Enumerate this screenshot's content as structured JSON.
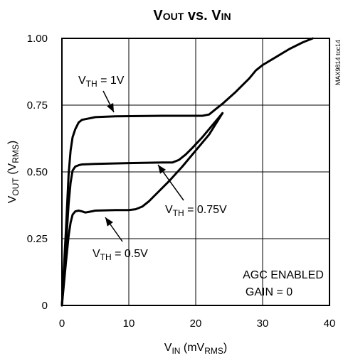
{
  "chart_data": {
    "type": "line",
    "title": "VOUT vs. VIN",
    "xlabel": "VIN (mVRMS)",
    "ylabel": "VOUT (VRMS)",
    "xlim": [
      0,
      40
    ],
    "ylim": [
      0,
      1.0
    ],
    "x_ticks": [
      "0",
      "10",
      "20",
      "30",
      "40"
    ],
    "y_ticks": [
      "0",
      "0.25",
      "0.50",
      "0.75",
      "1.00"
    ],
    "grid": true,
    "legend": "none",
    "side_label": "MAX9814 toc14",
    "annotation_lines": [
      "AGC ENABLED",
      "GAIN = 0"
    ],
    "series": [
      {
        "name": "VTH = 1V",
        "points": [
          [
            0,
            0
          ],
          [
            0.6,
            0.28
          ],
          [
            1.0,
            0.49
          ],
          [
            1.3,
            0.58
          ],
          [
            1.6,
            0.63
          ],
          [
            2.0,
            0.66
          ],
          [
            2.5,
            0.685
          ],
          [
            3.0,
            0.695
          ],
          [
            4.0,
            0.7
          ],
          [
            5.0,
            0.705
          ],
          [
            8.0,
            0.708
          ],
          [
            15.0,
            0.71
          ],
          [
            20.0,
            0.71
          ],
          [
            21.0,
            0.71
          ],
          [
            22.0,
            0.715
          ],
          [
            23.0,
            0.735
          ],
          [
            24.0,
            0.755
          ],
          [
            26.0,
            0.8
          ],
          [
            28.0,
            0.85
          ],
          [
            29.0,
            0.88
          ],
          [
            30.0,
            0.9
          ],
          [
            32.0,
            0.93
          ],
          [
            34.0,
            0.96
          ],
          [
            36.0,
            0.985
          ],
          [
            37.5,
            1.0
          ]
        ]
      },
      {
        "name": "VTH = 0.75V",
        "points": [
          [
            0,
            0
          ],
          [
            0.6,
            0.22
          ],
          [
            1.0,
            0.38
          ],
          [
            1.3,
            0.46
          ],
          [
            1.6,
            0.505
          ],
          [
            2.0,
            0.52
          ],
          [
            2.5,
            0.525
          ],
          [
            3.0,
            0.528
          ],
          [
            5.0,
            0.53
          ],
          [
            10.0,
            0.533
          ],
          [
            15.0,
            0.535
          ],
          [
            16.5,
            0.535
          ],
          [
            17.5,
            0.545
          ],
          [
            18.5,
            0.565
          ],
          [
            19.5,
            0.59
          ],
          [
            21.0,
            0.63
          ],
          [
            23.0,
            0.69
          ],
          [
            24.0,
            0.72
          ]
        ]
      },
      {
        "name": "VTH = 0.5V",
        "points": [
          [
            0,
            0
          ],
          [
            0.6,
            0.16
          ],
          [
            1.0,
            0.26
          ],
          [
            1.3,
            0.31
          ],
          [
            1.6,
            0.34
          ],
          [
            2.0,
            0.352
          ],
          [
            2.5,
            0.355
          ],
          [
            3.0,
            0.352
          ],
          [
            3.5,
            0.348
          ],
          [
            4.0,
            0.35
          ],
          [
            5.0,
            0.355
          ],
          [
            8.0,
            0.357
          ],
          [
            10.0,
            0.357
          ],
          [
            11.0,
            0.36
          ],
          [
            12.0,
            0.37
          ],
          [
            13.0,
            0.39
          ],
          [
            14.0,
            0.415
          ],
          [
            16.0,
            0.465
          ],
          [
            18.0,
            0.52
          ],
          [
            20.0,
            0.58
          ],
          [
            22.0,
            0.64
          ],
          [
            24.0,
            0.72
          ]
        ]
      }
    ],
    "labels": [
      {
        "series": "VTH = 1V",
        "text_main": "V",
        "text_sub": "TH",
        "text_rest": " = 1V"
      },
      {
        "series": "VTH = 0.75V",
        "text_main": "V",
        "text_sub": "TH",
        "text_rest": " = 0.75V"
      },
      {
        "series": "VTH = 0.5V",
        "text_main": "V",
        "text_sub": "TH",
        "text_rest": " = 0.5V"
      }
    ]
  }
}
